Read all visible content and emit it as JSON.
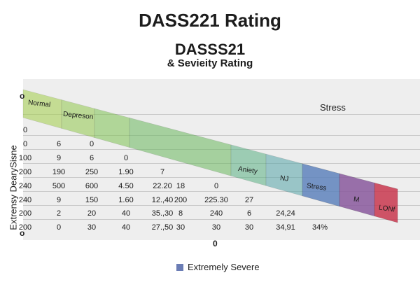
{
  "titles": {
    "main": "DASS221 Rating",
    "sub": "DASSS21",
    "sub2": "& Sevieity Rating"
  },
  "axis": {
    "y_label": "Extrensy DearySisne",
    "top_mark": "o",
    "bottom_mark": "o",
    "x_mark": "0"
  },
  "stress_header": "Stress",
  "legend": {
    "label": "Extremely Severe",
    "color": "#6b7db5"
  },
  "chart_data": {
    "type": "table",
    "title": "DASS221 Rating",
    "subtitle": "DASSS21 & Sevieity Rating",
    "ylabel": "Extrensy DearySisne",
    "band": {
      "labels": [
        "Normal",
        "Depreson",
        "Aniety",
        "NJ",
        "Stress",
        "M",
        "LONf"
      ],
      "colors": [
        "#8cc63f",
        "#7bbf4a",
        "#5cb05a",
        "#52b08c",
        "#5f84bd",
        "#8a5a9e",
        "#c9384f"
      ]
    },
    "rows": [
      [
        "0"
      ],
      [
        "0",
        "6",
        "0"
      ],
      [
        "100",
        "9",
        "6",
        "0"
      ],
      [
        "200",
        "190",
        "250",
        "1.90",
        "7"
      ],
      [
        "240",
        "500",
        "600",
        "4.50",
        "22.20",
        "18",
        "0"
      ],
      [
        "240",
        "9",
        "150",
        "1.60",
        "12.,40",
        "200",
        "225.30",
        "27"
      ],
      [
        "200",
        "2",
        "20",
        "40",
        "35.,30",
        "8",
        "240",
        "6",
        "24,24"
      ],
      [
        "200",
        "0",
        "30",
        "40",
        "27.,50",
        "30",
        "30",
        "30",
        "34,91",
        "34%"
      ]
    ]
  }
}
